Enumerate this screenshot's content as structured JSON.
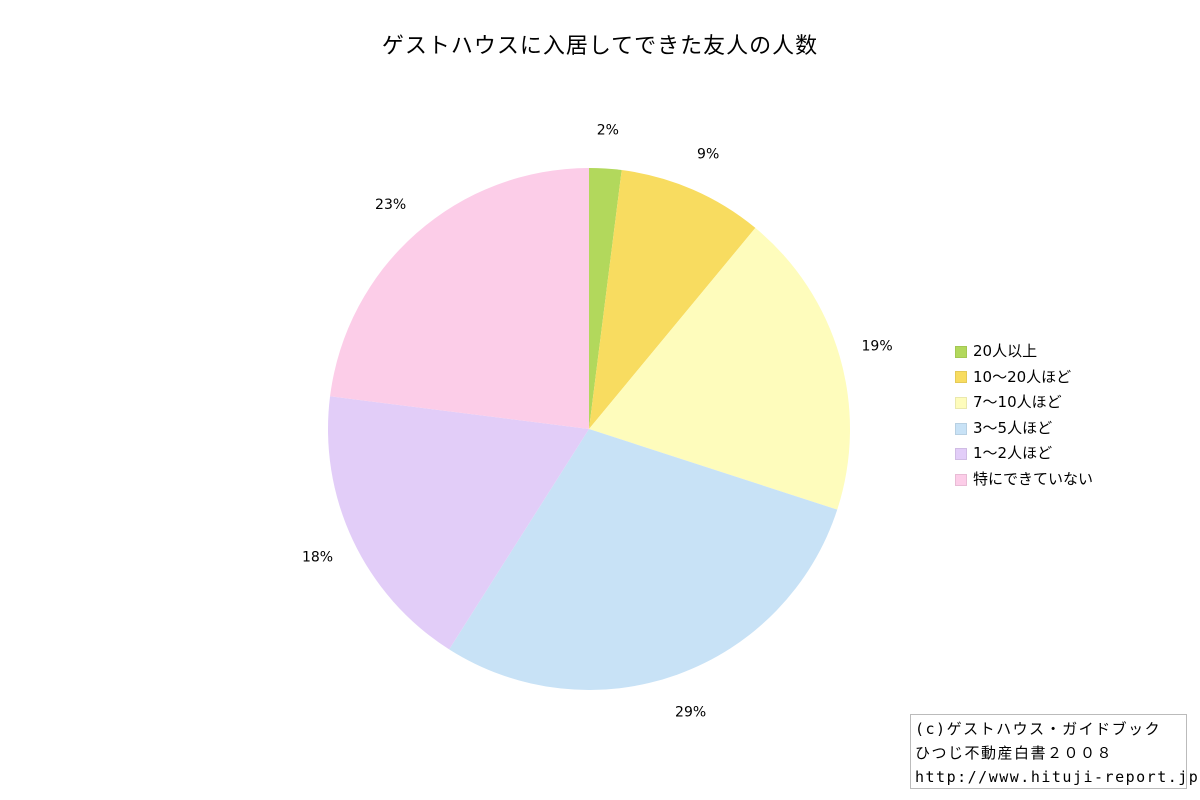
{
  "chart_data": {
    "type": "pie",
    "title": "ゲストハウスに入居してできた友人の人数",
    "slices": [
      {
        "label": "20人以上",
        "value": 2,
        "display": "2%",
        "color": "#b2d85c"
      },
      {
        "label": "10〜20人ほど",
        "value": 9,
        "display": "9%",
        "color": "#f8dc60"
      },
      {
        "label": "7〜10人ほど",
        "value": 19,
        "display": "19%",
        "color": "#fefcbc"
      },
      {
        "label": "3〜5人ほど",
        "value": 29,
        "display": "29%",
        "color": "#c8e2f6"
      },
      {
        "label": "1〜2人ほど",
        "value": 18,
        "display": "18%",
        "color": "#e2cdf8"
      },
      {
        "label": "特にできていない",
        "value": 23,
        "display": "23%",
        "color": "#fccde8"
      }
    ],
    "legend_position": "right"
  },
  "credit": {
    "line1": "(c)ゲストハウス・ガイドブック",
    "line2": "ひつじ不動産白書２００８",
    "line3": "http://www.hituji-report.jp/"
  }
}
